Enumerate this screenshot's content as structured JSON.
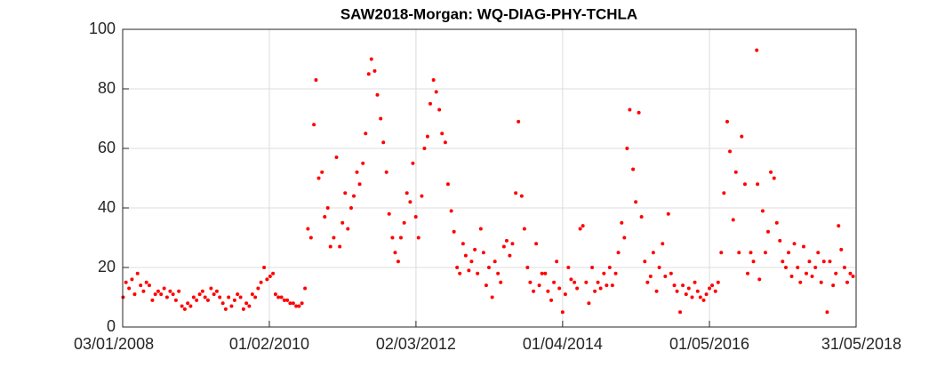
{
  "chart_data": {
    "type": "scatter",
    "title": "SAW2018-Morgan: WQ-DIAG-PHY-TCHLA",
    "color": "#ff0000",
    "grid": true,
    "xlim": [
      "2008-01-03",
      "2018-05-31"
    ],
    "xticks": [
      {
        "value": "2008-01-03",
        "label": "03/01/2008"
      },
      {
        "value": "2010-02-01",
        "label": "01/02/2010"
      },
      {
        "value": "2012-03-02",
        "label": "02/03/2012"
      },
      {
        "value": "2014-04-01",
        "label": "01/04/2014"
      },
      {
        "value": "2016-05-01",
        "label": "01/05/2016"
      },
      {
        "value": "2018-05-31",
        "label": "31/05/2018"
      }
    ],
    "ylim": [
      0,
      100
    ],
    "yticks": [
      0,
      20,
      40,
      60,
      80,
      100
    ],
    "x": [
      "2008-01-05",
      "2008-01-20",
      "2008-02-05",
      "2008-02-20",
      "2008-03-05",
      "2008-03-20",
      "2008-04-05",
      "2008-04-20",
      "2008-05-05",
      "2008-05-20",
      "2008-06-05",
      "2008-06-20",
      "2008-07-05",
      "2008-07-20",
      "2008-08-05",
      "2008-08-20",
      "2008-09-05",
      "2008-09-20",
      "2008-10-05",
      "2008-10-20",
      "2008-11-05",
      "2008-11-20",
      "2008-12-05",
      "2008-12-20",
      "2009-01-05",
      "2009-01-20",
      "2009-02-05",
      "2009-02-20",
      "2009-03-05",
      "2009-03-20",
      "2009-04-05",
      "2009-04-20",
      "2009-05-05",
      "2009-05-20",
      "2009-06-05",
      "2009-06-20",
      "2009-07-05",
      "2009-07-20",
      "2009-08-05",
      "2009-08-20",
      "2009-09-05",
      "2009-09-20",
      "2009-10-05",
      "2009-10-20",
      "2009-11-05",
      "2009-11-20",
      "2009-12-05",
      "2009-12-20",
      "2010-01-05",
      "2010-01-20",
      "2010-02-05",
      "2010-02-20",
      "2010-03-05",
      "2010-03-20",
      "2010-04-05",
      "2010-04-20",
      "2010-05-05",
      "2010-05-20",
      "2010-06-05",
      "2010-06-20",
      "2010-07-05",
      "2010-07-20",
      "2010-08-05",
      "2010-08-20",
      "2010-09-05",
      "2010-09-20",
      "2010-10-01",
      "2010-10-15",
      "2010-11-01",
      "2010-11-15",
      "2010-12-01",
      "2010-12-15",
      "2011-01-01",
      "2011-01-15",
      "2011-02-01",
      "2011-02-15",
      "2011-03-01",
      "2011-03-15",
      "2011-04-01",
      "2011-04-15",
      "2011-05-01",
      "2011-05-15",
      "2011-06-01",
      "2011-06-15",
      "2011-07-01",
      "2011-07-15",
      "2011-08-01",
      "2011-08-15",
      "2011-09-01",
      "2011-09-15",
      "2011-10-01",
      "2011-10-15",
      "2011-11-01",
      "2011-11-15",
      "2011-12-01",
      "2011-12-15",
      "2012-01-01",
      "2012-01-15",
      "2012-02-01",
      "2012-02-15",
      "2012-03-01",
      "2012-03-15",
      "2012-04-01",
      "2012-04-15",
      "2012-05-01",
      "2012-05-15",
      "2012-06-01",
      "2012-06-15",
      "2012-07-01",
      "2012-07-15",
      "2012-08-01",
      "2012-08-15",
      "2012-09-01",
      "2012-09-15",
      "2012-10-01",
      "2012-10-15",
      "2012-11-01",
      "2012-11-15",
      "2012-12-01",
      "2012-12-15",
      "2013-01-01",
      "2013-01-15",
      "2013-02-01",
      "2013-02-15",
      "2013-03-01",
      "2013-03-15",
      "2013-04-01",
      "2013-04-15",
      "2013-05-01",
      "2013-05-15",
      "2013-06-01",
      "2013-06-15",
      "2013-07-01",
      "2013-07-15",
      "2013-08-01",
      "2013-08-15",
      "2013-09-01",
      "2013-09-15",
      "2013-10-01",
      "2013-10-15",
      "2013-11-01",
      "2013-11-15",
      "2013-12-01",
      "2013-12-15",
      "2014-01-01",
      "2014-01-15",
      "2014-02-01",
      "2014-02-15",
      "2014-03-01",
      "2014-03-15",
      "2014-04-01",
      "2014-04-15",
      "2014-05-01",
      "2014-05-15",
      "2014-06-01",
      "2014-06-15",
      "2014-07-01",
      "2014-07-15",
      "2014-08-01",
      "2014-08-15",
      "2014-09-01",
      "2014-09-15",
      "2014-10-01",
      "2014-10-15",
      "2014-11-01",
      "2014-11-15",
      "2014-12-01",
      "2014-12-15",
      "2015-01-01",
      "2015-01-15",
      "2015-02-01",
      "2015-02-15",
      "2015-03-01",
      "2015-03-15",
      "2015-04-01",
      "2015-04-15",
      "2015-05-01",
      "2015-05-15",
      "2015-06-01",
      "2015-06-15",
      "2015-07-01",
      "2015-07-15",
      "2015-08-01",
      "2015-08-15",
      "2015-09-01",
      "2015-09-15",
      "2015-10-01",
      "2015-10-15",
      "2015-11-01",
      "2015-11-15",
      "2015-12-01",
      "2015-12-15",
      "2016-01-01",
      "2016-01-15",
      "2016-02-01",
      "2016-02-15",
      "2016-03-01",
      "2016-03-15",
      "2016-04-01",
      "2016-04-15",
      "2016-05-01",
      "2016-05-15",
      "2016-06-01",
      "2016-06-15",
      "2016-07-01",
      "2016-07-15",
      "2016-08-01",
      "2016-08-15",
      "2016-09-01",
      "2016-09-15",
      "2016-10-01",
      "2016-10-15",
      "2016-11-01",
      "2016-11-15",
      "2016-12-01",
      "2016-12-15",
      "2017-01-01",
      "2017-01-05",
      "2017-01-15",
      "2017-02-01",
      "2017-02-15",
      "2017-03-01",
      "2017-03-15",
      "2017-04-01",
      "2017-04-15",
      "2017-05-01",
      "2017-05-15",
      "2017-06-01",
      "2017-06-15",
      "2017-07-01",
      "2017-07-15",
      "2017-08-01",
      "2017-08-15",
      "2017-09-01",
      "2017-09-15",
      "2017-10-01",
      "2017-10-15",
      "2017-11-01",
      "2017-11-15",
      "2017-12-01",
      "2017-12-15",
      "2018-01-01",
      "2018-01-15",
      "2018-02-01",
      "2018-02-15",
      "2018-03-01",
      "2018-03-15",
      "2018-04-01",
      "2018-04-15",
      "2018-05-01",
      "2018-05-15"
    ],
    "values": [
      10,
      15,
      13,
      16,
      11,
      18,
      14,
      12,
      15,
      14,
      9,
      11,
      12,
      11,
      13,
      10,
      12,
      11,
      9,
      12,
      7,
      6,
      8,
      7,
      10,
      9,
      11,
      12,
      10,
      9,
      13,
      11,
      12,
      10,
      8,
      6,
      10,
      7,
      9,
      11,
      10,
      6,
      8,
      7,
      11,
      10,
      13,
      15,
      20,
      16,
      17,
      18,
      11,
      10,
      10,
      9,
      9,
      8,
      8,
      7,
      7,
      8,
      13,
      33,
      30,
      68,
      83,
      50,
      52,
      37,
      40,
      27,
      30,
      57,
      27,
      35,
      45,
      33,
      40,
      44,
      52,
      48,
      55,
      65,
      85,
      90,
      86,
      78,
      70,
      62,
      52,
      38,
      30,
      25,
      22,
      30,
      35,
      45,
      42,
      55,
      37,
      30,
      44,
      60,
      64,
      75,
      83,
      79,
      73,
      65,
      62,
      48,
      39,
      32,
      20,
      18,
      28,
      24,
      19,
      22,
      26,
      18,
      33,
      25,
      14,
      20,
      10,
      22,
      18,
      15,
      27,
      29,
      24,
      28,
      45,
      69,
      44,
      33,
      20,
      15,
      12,
      28,
      14,
      18,
      18,
      12,
      9,
      15,
      22,
      13,
      5,
      11,
      20,
      16,
      15,
      13,
      33,
      34,
      15,
      8,
      20,
      12,
      15,
      13,
      18,
      14,
      20,
      14,
      18,
      25,
      35,
      30,
      60,
      73,
      53,
      42,
      72,
      37,
      22,
      15,
      17,
      25,
      12,
      20,
      28,
      17,
      38,
      18,
      14,
      12,
      5,
      14,
      11,
      13,
      10,
      15,
      12,
      10,
      9,
      11,
      13,
      14,
      12,
      15,
      25,
      45,
      69,
      59,
      36,
      52,
      25,
      64,
      48,
      18,
      25,
      22,
      93,
      48,
      16,
      39,
      25,
      32,
      52,
      50,
      35,
      29,
      22,
      20,
      25,
      17,
      28,
      20,
      15,
      27,
      18,
      22,
      17,
      20,
      25,
      15,
      22,
      5,
      22,
      14,
      18,
      34,
      26,
      20,
      15,
      18,
      17
    ]
  }
}
